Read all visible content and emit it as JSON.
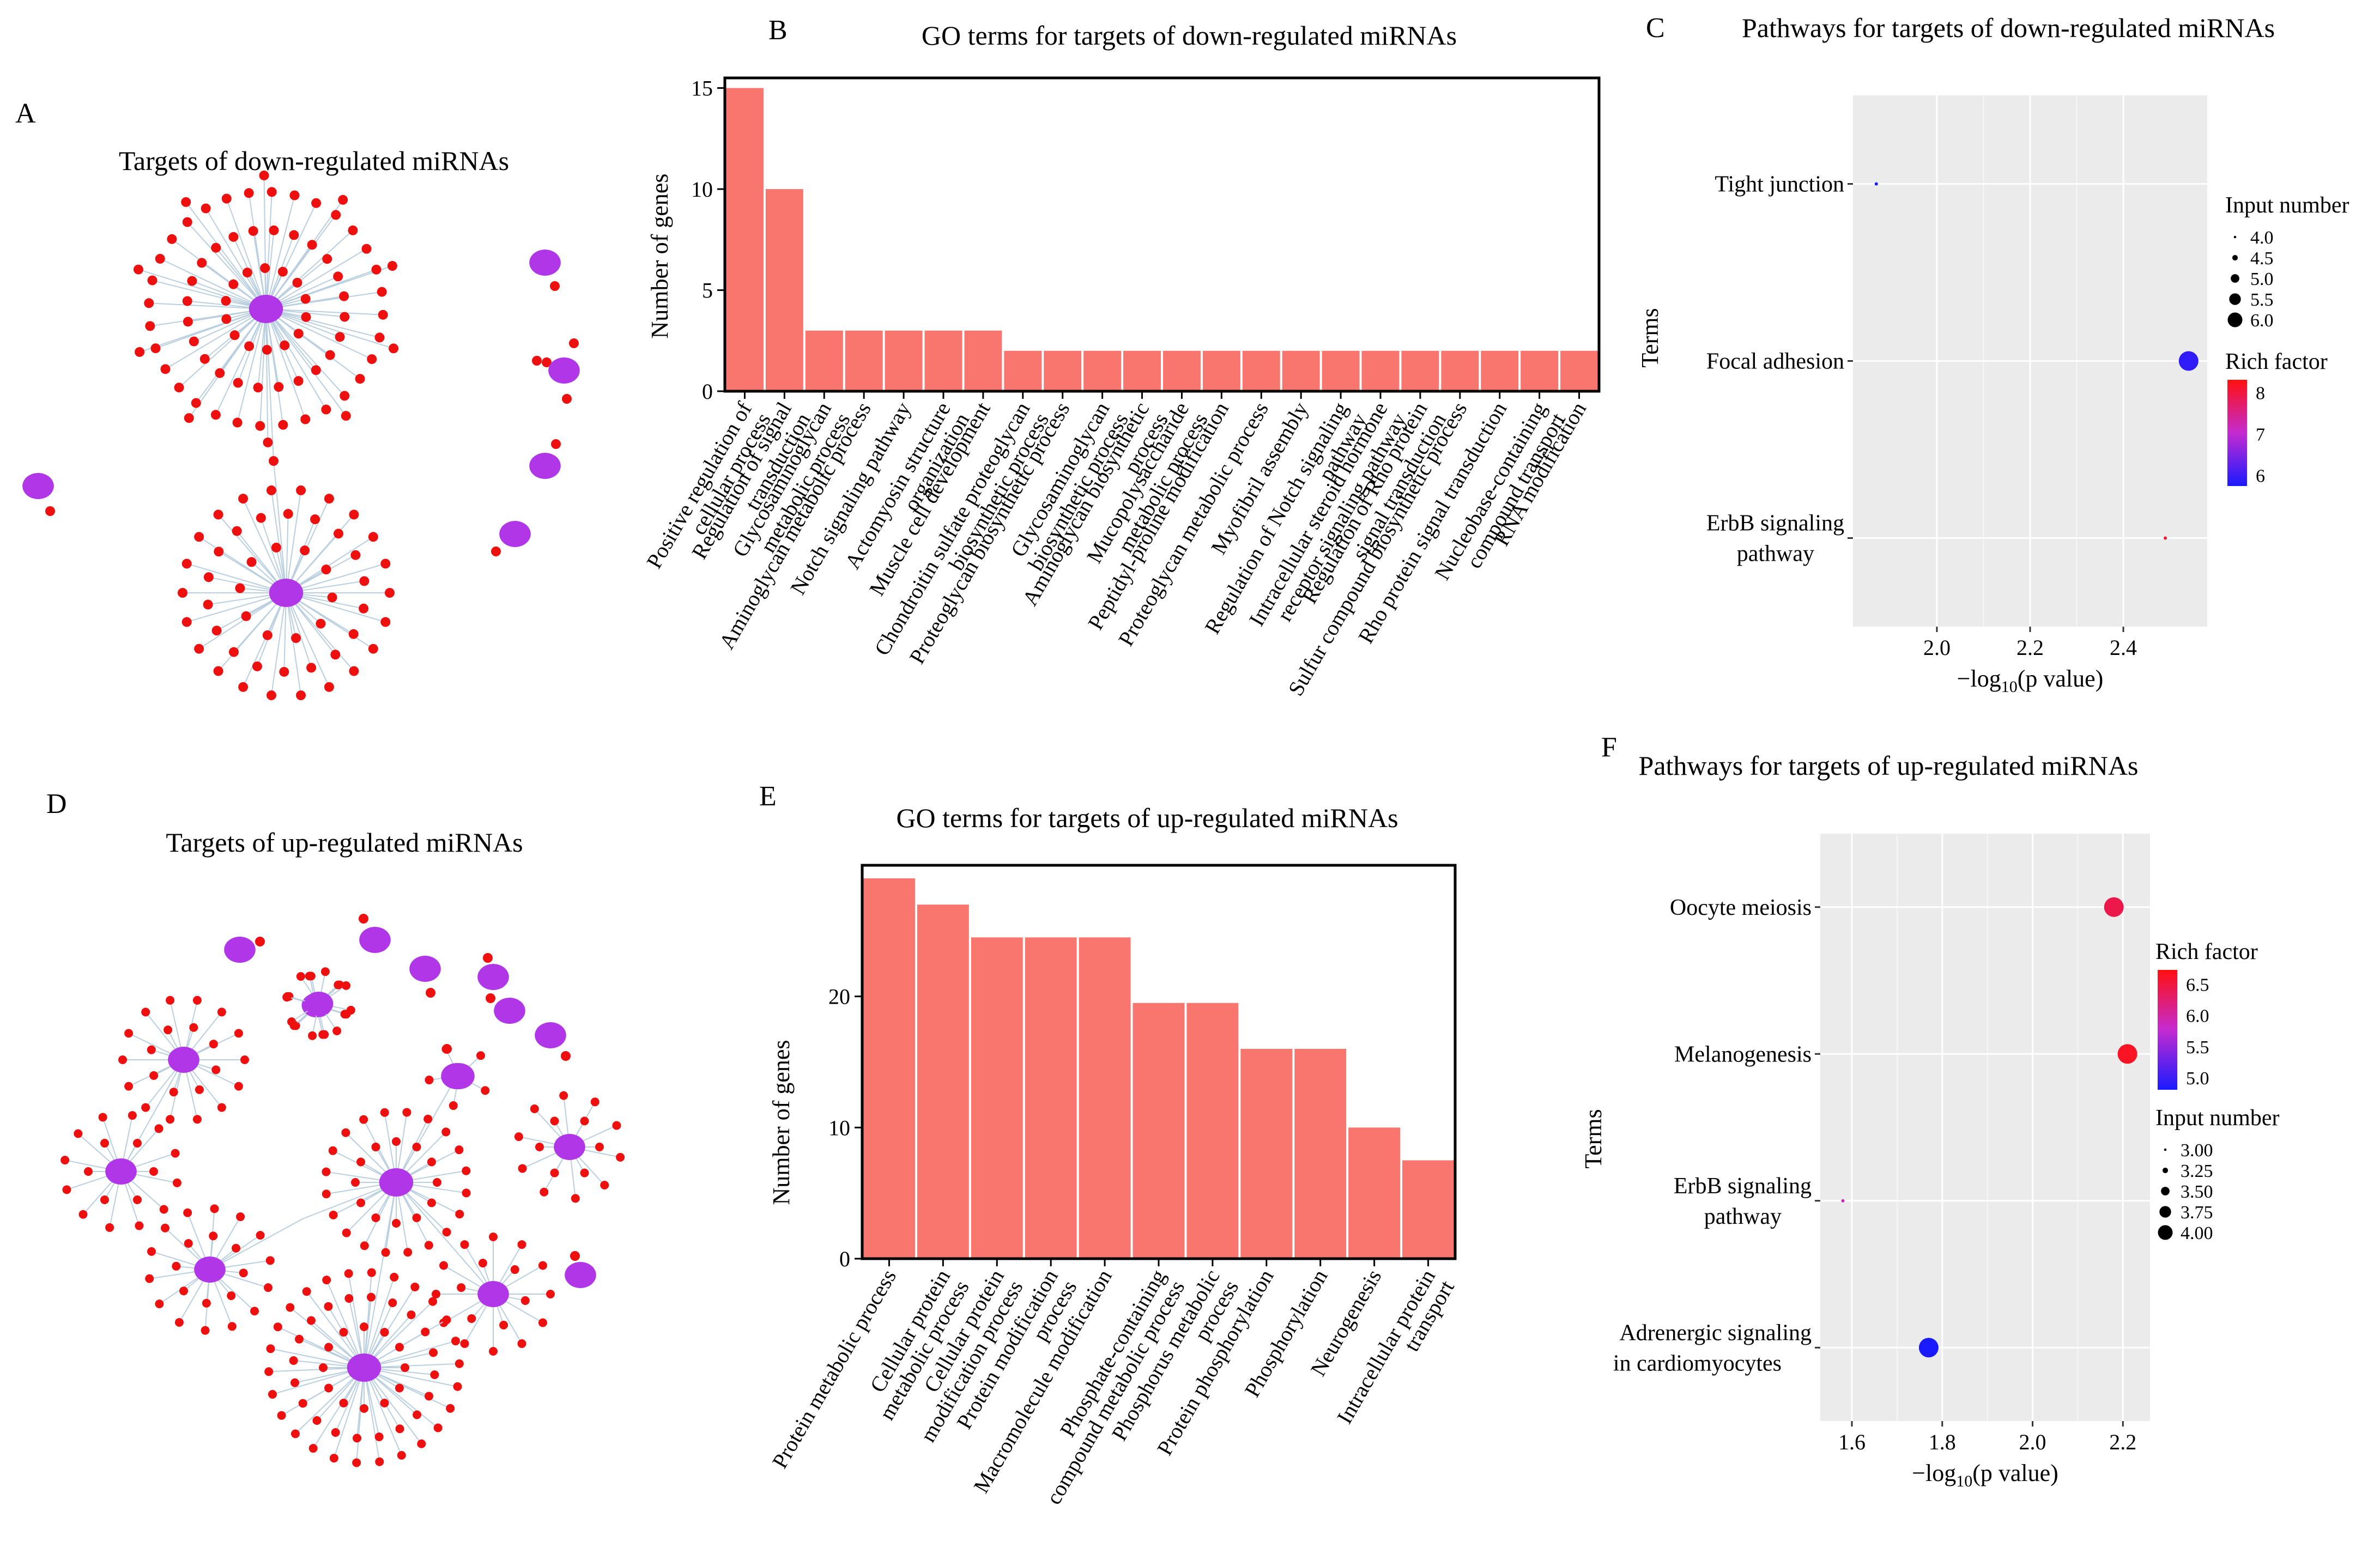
{
  "colors": {
    "bar": "#f8766d",
    "node_hub": "#b036e8",
    "node_leaf": "#ee0f0f",
    "edge": "#b9cfe0",
    "panel_bg": "#ebebeb",
    "grid": "#ffffff",
    "low": "#1a1aff",
    "high": "#ff1010"
  },
  "panel_A": {
    "letter": "A",
    "title": "Targets of down-regulated miRNAs"
  },
  "panel_D": {
    "letter": "D",
    "title": "Targets of up-regulated miRNAs"
  },
  "chart_data": [
    {
      "panel": "B",
      "type": "bar",
      "title": "GO terms for targets of down-regulated miRNAs",
      "ylabel": "Number of genes",
      "xlabel": "",
      "ylim": [
        0,
        15.5
      ],
      "yticks": [
        0,
        5,
        10,
        15
      ],
      "grid": false,
      "categories": [
        [
          "Positive regulation of",
          "cellular process"
        ],
        [
          "Regulation of signal",
          "transduction"
        ],
        [
          "Glycosaminoglycan",
          "metabolic process"
        ],
        [
          "Aminoglycan metabolic process"
        ],
        [
          "Notch signaling pathway"
        ],
        [
          "Actomyosin structure",
          "organization"
        ],
        [
          "Muscle cell development"
        ],
        [
          "Chondroitin sulfate proteoglycan",
          "biosynthetic process"
        ],
        [
          "Proteoglycan biosynthetic process"
        ],
        [
          "Glycosaminoglycan",
          "biosynthetic process"
        ],
        [
          "Aminoglycan biosynthetic",
          "process"
        ],
        [
          "Mucopolysaccharide",
          "metabolic process"
        ],
        [
          "Peptidyl-proline modification"
        ],
        [
          "Proteoglycan metabolic process"
        ],
        [
          "Myofibril assembly"
        ],
        [
          "Regulation of Notch signaling",
          "pathway"
        ],
        [
          "Intracellular steroid hormone",
          "receptor signaling pathway"
        ],
        [
          "Regulation of Rho protein",
          "signal transduction"
        ],
        [
          "Sulfur compound biosynthetic process"
        ],
        [
          "Rho protein signal transduction"
        ],
        [
          "Nucleobase-containing",
          "compound transport"
        ],
        [
          "RNA modification"
        ]
      ],
      "values": [
        15,
        10,
        3,
        3,
        3,
        3,
        3,
        2,
        2,
        2,
        2,
        2,
        2,
        2,
        2,
        2,
        2,
        2,
        2,
        2,
        2,
        2
      ]
    },
    {
      "panel": "C",
      "type": "scatter",
      "title": "Pathways for targets of down-regulated miRNAs",
      "xlabel_prefix": "−log",
      "xlabel_sub": "10",
      "xlabel_suffix": "(p value)",
      "ylabel": "Terms",
      "xlim": [
        1.82,
        2.58
      ],
      "xticks": [
        2.0,
        2.2,
        2.4
      ],
      "terms": [
        [
          "Tight junction"
        ],
        [
          "Focal adhesion"
        ],
        [
          "ErbB signaling",
          "pathway"
        ]
      ],
      "points": [
        {
          "term": 0,
          "x": 1.87,
          "size": 4,
          "rich": 5.2
        },
        {
          "term": 1,
          "x": 2.54,
          "size": 6,
          "rich": 5.4
        },
        {
          "term": 2,
          "x": 2.49,
          "size": 4,
          "rich": 8.2
        }
      ],
      "size_legend": {
        "title": "Input number",
        "values": [
          "4.0",
          "4.5",
          "5.0",
          "5.5",
          "6.0"
        ],
        "range": [
          4,
          6
        ]
      },
      "color_legend": {
        "title": "Rich factor",
        "ticks": [
          "8",
          "7",
          "6"
        ],
        "range": [
          5.2,
          8.4
        ]
      },
      "grid": true
    },
    {
      "panel": "E",
      "type": "bar",
      "title": "GO terms for targets of up-regulated miRNAs",
      "ylabel": "Number of genes",
      "xlabel": "",
      "ylim": [
        0,
        30
      ],
      "yticks": [
        0,
        10,
        20
      ],
      "grid": false,
      "categories": [
        [
          "Protein metabolic process"
        ],
        [
          "Cellular protein",
          "metabolic process"
        ],
        [
          "Cellular protein",
          "modification process"
        ],
        [
          "Protein modification",
          "process"
        ],
        [
          "Macromolecule modification"
        ],
        [
          "Phosphate-containing",
          "compound metabolic process"
        ],
        [
          "Phosphorus metabolic",
          "process"
        ],
        [
          "Protein phosphorylation"
        ],
        [
          "Phosphorylation"
        ],
        [
          "Neurogenesis"
        ],
        [
          "Intracellular protein",
          "transport"
        ]
      ],
      "values": [
        29,
        27,
        24.5,
        24.5,
        24.5,
        19.5,
        19.5,
        16,
        16,
        10,
        7.5
      ]
    },
    {
      "panel": "F",
      "type": "scatter",
      "title": "Pathways for targets of up-regulated miRNAs",
      "xlabel_prefix": "−log",
      "xlabel_sub": "10",
      "xlabel_suffix": "(p value)",
      "ylabel": "Terms",
      "xlim": [
        1.53,
        2.26
      ],
      "xticks": [
        1.6,
        1.8,
        2.0,
        2.2
      ],
      "terms": [
        [
          "Oocyte meiosis"
        ],
        [
          "Melanogenesis"
        ],
        [
          "ErbB signaling",
          "pathway"
        ],
        [
          "Adrenergic signaling",
          "in cardiomyocytes"
        ]
      ],
      "points": [
        {
          "term": 0,
          "x": 2.18,
          "size": 4,
          "rich": 6.6
        },
        {
          "term": 1,
          "x": 2.21,
          "size": 4,
          "rich": 6.8
        },
        {
          "term": 2,
          "x": 1.58,
          "size": 3,
          "rich": 6.0
        },
        {
          "term": 3,
          "x": 1.77,
          "size": 4,
          "rich": 4.9
        }
      ],
      "size_legend": {
        "title": "Input number",
        "values": [
          "3.00",
          "3.25",
          "3.50",
          "3.75",
          "4.00"
        ],
        "range": [
          3,
          4
        ]
      },
      "color_legend": {
        "title": "Rich factor",
        "ticks": [
          "6.5",
          "6.0",
          "5.5",
          "5.0"
        ],
        "range": [
          4.9,
          6.9
        ]
      },
      "grid": true
    }
  ]
}
